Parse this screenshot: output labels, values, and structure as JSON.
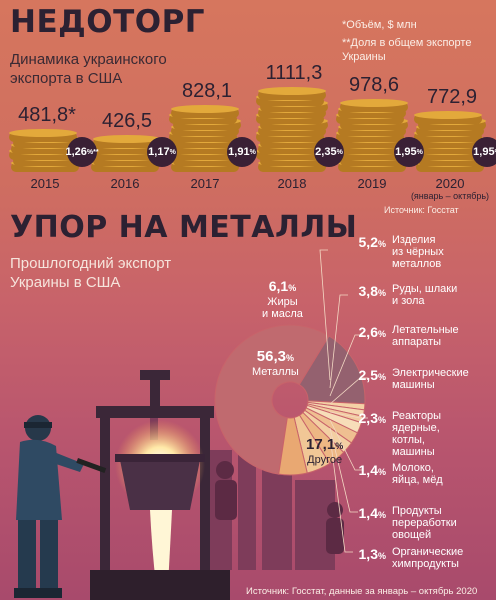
{
  "header": {
    "title": "НЕДОТОРГ",
    "subtitle_line1": "Динамика украинского",
    "subtitle_line2": "экспорта в США",
    "note_volume": "*Объём, $ млн",
    "note_share_line1": "**Доля в общем экспорте",
    "note_share_line2": "Украины",
    "source": "Источник: Госстат"
  },
  "chart_data": [
    {
      "type": "bar",
      "title": "НЕДОТОРГ",
      "categories": [
        "2015",
        "2016",
        "2017",
        "2018",
        "2019",
        "2020"
      ],
      "category_notes": [
        "",
        "",
        "",
        "",
        "",
        "(январь – октябрь)"
      ],
      "values": [
        481.8,
        426.5,
        828.1,
        1111.3,
        978.6,
        772.9
      ],
      "value_labels": [
        "481,8*",
        "426,5",
        "828,1",
        "1111,3",
        "978,6",
        "772,9"
      ],
      "share_labels": [
        "1,26%**",
        "1,17%",
        "1,91%",
        "2,35%",
        "1,95%",
        "1,95%"
      ],
      "shares": [
        1.26,
        1.17,
        1.91,
        2.35,
        1.95,
        1.95
      ],
      "unit": "$ млн"
    },
    {
      "type": "pie",
      "title": "УПОР НА МЕТАЛЛЫ",
      "subtitle_line1": "Прошлогодний экспорт",
      "subtitle_line2": "Украины в США",
      "labels": [
        "Металлы",
        "Другое",
        "Органические химпродукты",
        "Продукты переработки овощей",
        "Молоко, яйца, мёд",
        "Реакторы ядерные, котлы, машины",
        "Электрические машины",
        "Летательные аппараты",
        "Руды, шлаки и золы",
        "Изделия из чёрных металлов",
        "Жиры и масла"
      ],
      "values": [
        56.3,
        17.1,
        1.3,
        1.4,
        1.4,
        2.3,
        2.5,
        2.6,
        3.8,
        5.2,
        6.1
      ],
      "colors": [
        "#c06a6f",
        "#94616f",
        "#f4d1a6",
        "#f6d8b2",
        "#f2caa0",
        "#f7ddb9",
        "#efbf91",
        "#f3cfa3",
        "#edb784",
        "#f1c796",
        "#e9a872"
      ]
    }
  ],
  "section2": {
    "title": "УПОР НА МЕТАЛЛЫ",
    "subtitle_line1": "Прошлогодний экспорт",
    "subtitle_line2": "Украины в США"
  },
  "pie_labels": {
    "metals_pct": "56,3",
    "metals_label": "Металлы",
    "other_pct": "17,1",
    "other_label": "Другое",
    "fats_pct": "6,1",
    "fats_line1": "Жиры",
    "fats_line2": "и масла",
    "pct_sign": "%"
  },
  "categories": [
    {
      "pct": "5,2",
      "lines": [
        "Изделия",
        "из чёрных",
        "металлов"
      ]
    },
    {
      "pct": "3,8",
      "lines": [
        "Руды, шлаки",
        "и зола"
      ]
    },
    {
      "pct": "2,6",
      "lines": [
        "Летательные",
        "аппараты"
      ]
    },
    {
      "pct": "2,5",
      "lines": [
        "Электрические",
        "машины"
      ]
    },
    {
      "pct": "2,3",
      "lines": [
        "Реакторы",
        "ядерные,",
        "котлы,",
        "машины"
      ]
    },
    {
      "pct": "1,4",
      "lines": [
        "Молоко,",
        "яйца, мёд"
      ]
    },
    {
      "pct": "1,4",
      "lines": [
        "Продукты",
        "переработки",
        "овощей"
      ]
    },
    {
      "pct": "1,3",
      "lines": [
        "Органические",
        "химпродукты"
      ]
    }
  ],
  "footer": {
    "source": "Источник: Госстат, данные за январь – октябрь 2020 года"
  },
  "colors": {
    "dark": "#2c2132",
    "badge": "#3a2035",
    "coin": "#e3a93b",
    "coin_dark": "#b57a22"
  }
}
